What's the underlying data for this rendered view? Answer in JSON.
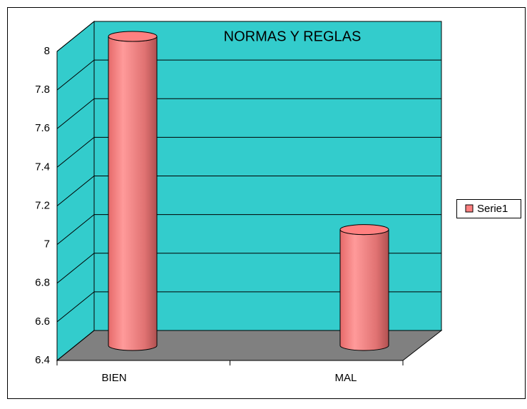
{
  "chart_data": {
    "type": "bar",
    "title": "NORMAS Y REGLAS",
    "categories": [
      "BIEN",
      "MAL"
    ],
    "series": [
      {
        "name": "Serie1",
        "color": "#ff8080",
        "values": [
          8,
          7
        ]
      }
    ],
    "ylim": [
      6.4,
      8
    ],
    "yticks": [
      6.4,
      6.6,
      6.8,
      7,
      7.2,
      7.4,
      7.6,
      7.8,
      8
    ],
    "grid": true,
    "legend": "right"
  }
}
